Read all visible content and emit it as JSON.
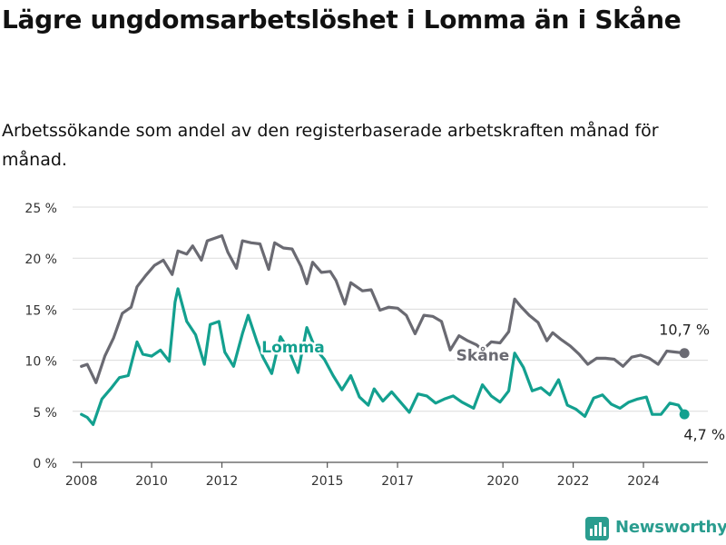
{
  "title": "Lägre ungdomsarbetslöshet i Lomma än i Skåne",
  "subtitle": "Arbetssökande som andel av den registerbaserade arbetskraften månad för månad.",
  "brand": {
    "name": "Newsworthy",
    "icon": "newsworthy-logo-icon",
    "color": "#2a9d8f"
  },
  "colors": {
    "lomma": "#13a08f",
    "skane": "#6a6a72",
    "grid": "#dcdcdc",
    "axis": "#555555"
  },
  "chart_data": {
    "type": "line",
    "x_ticks": [
      "2008",
      "2010",
      "2012",
      "2015",
      "2017",
      "2020",
      "2022",
      "2024"
    ],
    "y_ticks": [
      "0 %",
      "5 %",
      "10 %",
      "15 %",
      "20 %",
      "25 %"
    ],
    "ylim": [
      0,
      25
    ],
    "xlim": [
      "2007-10",
      "2025-11"
    ],
    "grid": true,
    "series": [
      {
        "name": "Skåne",
        "color": "#6a6a72",
        "end_label": "10,7 %",
        "points": [
          [
            "2008-01",
            9.4
          ],
          [
            "2008-03",
            9.6
          ],
          [
            "2008-06",
            7.8
          ],
          [
            "2008-09",
            10.4
          ],
          [
            "2008-12",
            12.2
          ],
          [
            "2009-03",
            14.6
          ],
          [
            "2009-06",
            15.2
          ],
          [
            "2009-08",
            17.2
          ],
          [
            "2009-11",
            18.3
          ],
          [
            "2010-02",
            19.3
          ],
          [
            "2010-05",
            19.8
          ],
          [
            "2010-08",
            18.4
          ],
          [
            "2010-10",
            20.7
          ],
          [
            "2011-01",
            20.4
          ],
          [
            "2011-03",
            21.2
          ],
          [
            "2011-06",
            19.8
          ],
          [
            "2011-08",
            21.7
          ],
          [
            "2011-11",
            22.0
          ],
          [
            "2012-01",
            22.2
          ],
          [
            "2012-03",
            20.6
          ],
          [
            "2012-06",
            19.0
          ],
          [
            "2012-08",
            21.7
          ],
          [
            "2012-11",
            21.5
          ],
          [
            "2013-02",
            21.4
          ],
          [
            "2013-05",
            18.9
          ],
          [
            "2013-07",
            21.5
          ],
          [
            "2013-10",
            21.0
          ],
          [
            "2014-01",
            20.9
          ],
          [
            "2014-04",
            19.2
          ],
          [
            "2014-06",
            17.5
          ],
          [
            "2014-08",
            19.6
          ],
          [
            "2014-11",
            18.6
          ],
          [
            "2015-02",
            18.7
          ],
          [
            "2015-04",
            17.8
          ],
          [
            "2015-07",
            15.5
          ],
          [
            "2015-09",
            17.6
          ],
          [
            "2016-01",
            16.8
          ],
          [
            "2016-04",
            16.9
          ],
          [
            "2016-07",
            14.9
          ],
          [
            "2016-10",
            15.2
          ],
          [
            "2017-01",
            15.1
          ],
          [
            "2017-04",
            14.4
          ],
          [
            "2017-07",
            12.6
          ],
          [
            "2017-10",
            14.4
          ],
          [
            "2018-01",
            14.3
          ],
          [
            "2018-04",
            13.8
          ],
          [
            "2018-07",
            11.0
          ],
          [
            "2018-10",
            12.4
          ],
          [
            "2019-01",
            11.9
          ],
          [
            "2019-04",
            11.5
          ],
          [
            "2019-06",
            11.0
          ],
          [
            "2019-09",
            11.8
          ],
          [
            "2019-12",
            11.7
          ],
          [
            "2020-03",
            12.8
          ],
          [
            "2020-05",
            16.0
          ],
          [
            "2020-07",
            15.3
          ],
          [
            "2020-10",
            14.4
          ],
          [
            "2021-01",
            13.7
          ],
          [
            "2021-04",
            11.9
          ],
          [
            "2021-06",
            12.7
          ],
          [
            "2021-09",
            12.0
          ],
          [
            "2021-12",
            11.4
          ],
          [
            "2022-03",
            10.6
          ],
          [
            "2022-06",
            9.6
          ],
          [
            "2022-09",
            10.2
          ],
          [
            "2022-12",
            10.2
          ],
          [
            "2023-03",
            10.1
          ],
          [
            "2023-06",
            9.4
          ],
          [
            "2023-09",
            10.3
          ],
          [
            "2023-12",
            10.5
          ],
          [
            "2024-03",
            10.2
          ],
          [
            "2024-06",
            9.6
          ],
          [
            "2024-09",
            10.9
          ],
          [
            "2024-12",
            10.8
          ],
          [
            "2025-03",
            10.7
          ]
        ]
      },
      {
        "name": "Lomma",
        "color": "#13a08f",
        "end_label": "4,7 %",
        "points": [
          [
            "2008-01",
            4.7
          ],
          [
            "2008-03",
            4.4
          ],
          [
            "2008-05",
            3.7
          ],
          [
            "2008-08",
            6.2
          ],
          [
            "2008-11",
            7.2
          ],
          [
            "2009-02",
            8.3
          ],
          [
            "2009-05",
            8.5
          ],
          [
            "2009-08",
            11.8
          ],
          [
            "2009-10",
            10.6
          ],
          [
            "2010-01",
            10.4
          ],
          [
            "2010-04",
            11.0
          ],
          [
            "2010-07",
            9.9
          ],
          [
            "2010-09",
            15.7
          ],
          [
            "2010-10",
            17.0
          ],
          [
            "2011-01",
            13.8
          ],
          [
            "2011-04",
            12.5
          ],
          [
            "2011-07",
            9.6
          ],
          [
            "2011-09",
            13.5
          ],
          [
            "2011-12",
            13.8
          ],
          [
            "2012-02",
            10.8
          ],
          [
            "2012-05",
            9.4
          ],
          [
            "2012-08",
            12.6
          ],
          [
            "2012-10",
            14.4
          ],
          [
            "2013-01",
            11.8
          ],
          [
            "2013-03",
            10.3
          ],
          [
            "2013-06",
            8.7
          ],
          [
            "2013-09",
            12.3
          ],
          [
            "2013-12",
            10.9
          ],
          [
            "2014-03",
            8.8
          ],
          [
            "2014-06",
            13.2
          ],
          [
            "2014-09",
            11.1
          ],
          [
            "2014-12",
            10.1
          ],
          [
            "2015-03",
            8.5
          ],
          [
            "2015-06",
            7.1
          ],
          [
            "2015-09",
            8.5
          ],
          [
            "2015-12",
            6.4
          ],
          [
            "2016-03",
            5.6
          ],
          [
            "2016-05",
            7.2
          ],
          [
            "2016-08",
            6.0
          ],
          [
            "2016-11",
            6.9
          ],
          [
            "2017-02",
            5.9
          ],
          [
            "2017-05",
            4.9
          ],
          [
            "2017-08",
            6.7
          ],
          [
            "2017-11",
            6.5
          ],
          [
            "2018-02",
            5.8
          ],
          [
            "2018-05",
            6.2
          ],
          [
            "2018-08",
            6.5
          ],
          [
            "2018-11",
            5.9
          ],
          [
            "2019-03",
            5.3
          ],
          [
            "2019-06",
            7.6
          ],
          [
            "2019-09",
            6.5
          ],
          [
            "2019-12",
            5.9
          ],
          [
            "2020-03",
            7.0
          ],
          [
            "2020-05",
            10.7
          ],
          [
            "2020-08",
            9.3
          ],
          [
            "2020-11",
            7.0
          ],
          [
            "2021-02",
            7.3
          ],
          [
            "2021-05",
            6.6
          ],
          [
            "2021-08",
            8.1
          ],
          [
            "2021-11",
            5.6
          ],
          [
            "2022-02",
            5.2
          ],
          [
            "2022-05",
            4.5
          ],
          [
            "2022-08",
            6.3
          ],
          [
            "2022-11",
            6.6
          ],
          [
            "2023-02",
            5.7
          ],
          [
            "2023-05",
            5.3
          ],
          [
            "2023-08",
            5.9
          ],
          [
            "2023-11",
            6.2
          ],
          [
            "2024-02",
            6.4
          ],
          [
            "2024-04",
            4.7
          ],
          [
            "2024-07",
            4.7
          ],
          [
            "2024-10",
            5.8
          ],
          [
            "2025-01",
            5.6
          ],
          [
            "2025-03",
            4.7
          ]
        ]
      }
    ]
  }
}
